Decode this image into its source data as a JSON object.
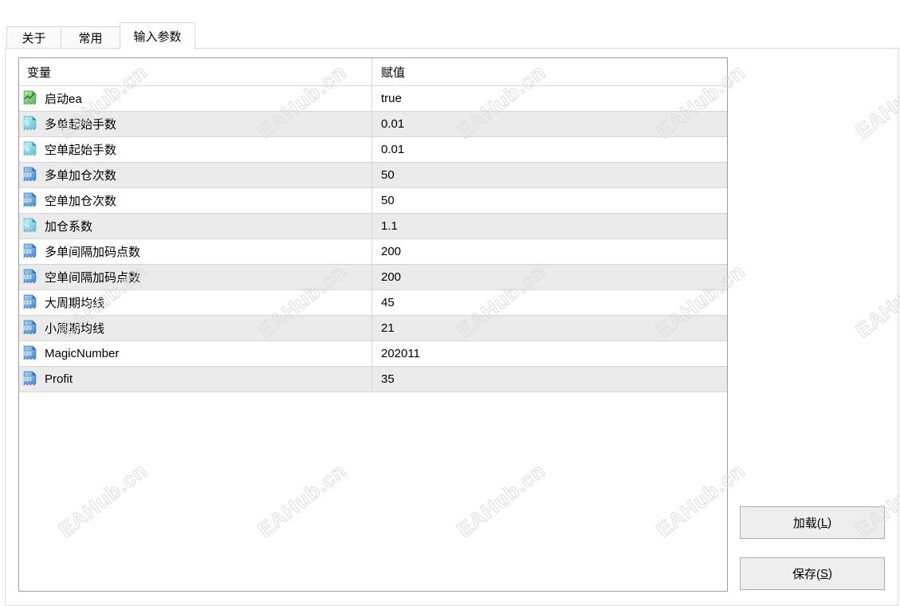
{
  "tabs": [
    {
      "label": "关于",
      "active": false
    },
    {
      "label": "常用",
      "active": false
    },
    {
      "label": "输入参数",
      "active": true
    }
  ],
  "table": {
    "columns": [
      "变量",
      "赋值"
    ],
    "rows": [
      {
        "icon": "bool",
        "name": "启动ea",
        "value": "true"
      },
      {
        "icon": "double",
        "name": "多单起始手数",
        "value": "0.01"
      },
      {
        "icon": "double",
        "name": "空单起始手数",
        "value": "0.01"
      },
      {
        "icon": "int",
        "name": "多单加仓次数",
        "value": "50"
      },
      {
        "icon": "int",
        "name": "空单加仓次数",
        "value": "50"
      },
      {
        "icon": "double",
        "name": "加仓系数",
        "value": "1.1"
      },
      {
        "icon": "int",
        "name": "多单间隔加码点数",
        "value": "200"
      },
      {
        "icon": "int",
        "name": "空单间隔加码点数",
        "value": "200"
      },
      {
        "icon": "int",
        "name": "大周期均线",
        "value": "45"
      },
      {
        "icon": "int",
        "name": "小周期均线",
        "value": "21"
      },
      {
        "icon": "int",
        "name": "MagicNumber",
        "value": "202011"
      },
      {
        "icon": "int",
        "name": "Profit",
        "value": "35"
      }
    ]
  },
  "icons": {
    "bool": "bool-parameter-icon",
    "double": "double-parameter-icon",
    "int": "integer-parameter-icon"
  },
  "buttons": {
    "load": {
      "pre": "加载(",
      "key": "L",
      "post": ")"
    },
    "save": {
      "pre": "保存(",
      "key": "S",
      "post": ")"
    }
  },
  "watermark": {
    "text": "EAHub.cn"
  },
  "colors": {
    "row_alt": "#ebebeb",
    "row_separator": "#d6d6d6",
    "table_border": "#9a9ea4",
    "panel_border": "#d9d9d9",
    "button_bg": "#eeeeee",
    "button_border": "#ababab",
    "watermark": "#dcdcdc",
    "icon_bool": "#5cb85c",
    "icon_double": "#62c2da",
    "icon_int": "#4a90d2"
  }
}
